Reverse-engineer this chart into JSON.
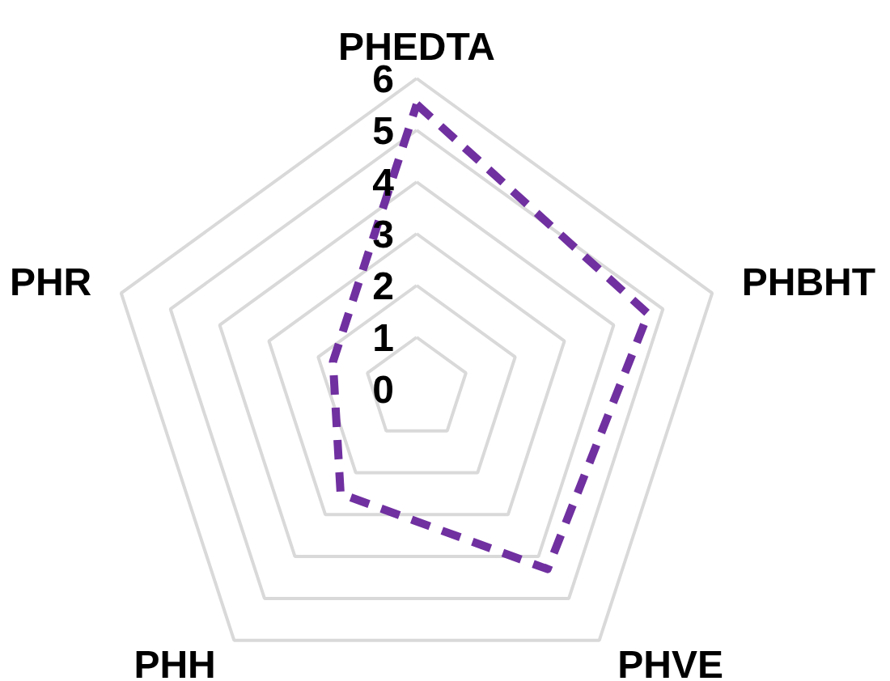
{
  "chart_data": {
    "type": "radar",
    "categories": [
      "PHEDTA",
      "PHBHT",
      "PHVE",
      "PHH",
      "PHR"
    ],
    "series": [
      {
        "color": "#7030a0",
        "values": [
          5.5,
          4.7,
          4.3,
          2.5,
          1.7
        ]
      }
    ],
    "ylim": [
      0,
      6
    ],
    "yticks": [
      0,
      1,
      2,
      3,
      4,
      5,
      6
    ],
    "grid": true,
    "line_style": "dashed",
    "marker": "none"
  }
}
